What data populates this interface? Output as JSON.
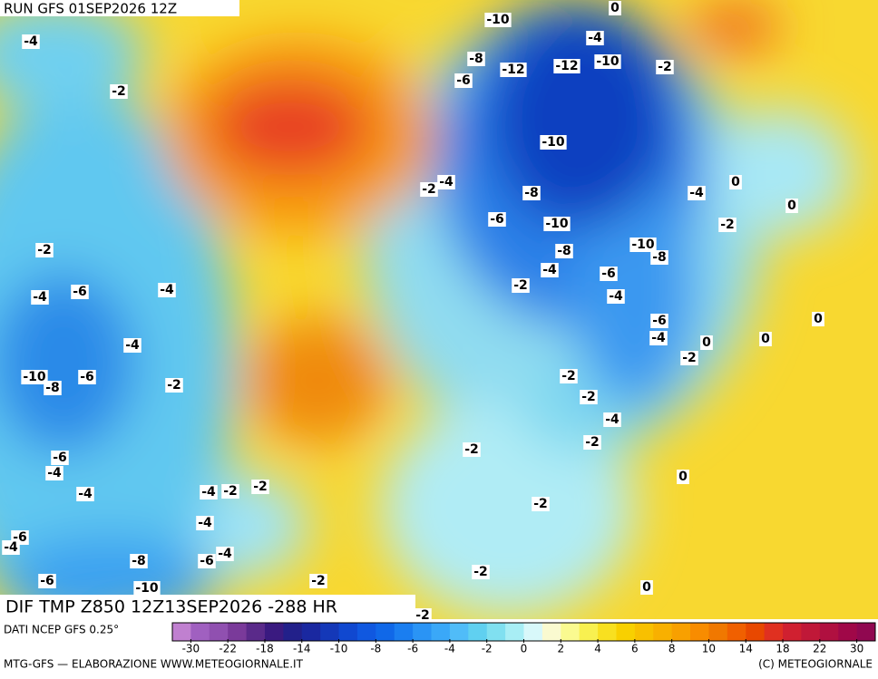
{
  "header": {
    "run": "RUN GFS 01SEP2026 12Z"
  },
  "map": {
    "title": "DIF TMP Z850 12Z13SEP2026 -288 HR",
    "contour_labels": [
      -10,
      0,
      -4,
      -4,
      -8,
      -12,
      -12,
      -10,
      -2,
      -6,
      -2,
      -10,
      -2,
      -4,
      -8,
      -4,
      0,
      0,
      -6,
      -10,
      -2,
      -2,
      -8,
      -10,
      -8,
      -4,
      -6,
      -2,
      -4,
      -6,
      -4,
      -4,
      -6,
      0,
      -4,
      0,
      0,
      -4,
      -2,
      -10,
      -8,
      -6,
      -2,
      -2,
      -2,
      -4,
      -2,
      -2,
      -6,
      -4,
      0,
      -4,
      -4,
      -2,
      -2,
      -2,
      -4,
      -6,
      -4,
      -4,
      -8,
      -6,
      -2,
      -6,
      -10,
      -2,
      0,
      -2
    ]
  },
  "colorbar": {
    "source": "DATI NCEP GFS 0.25°",
    "colors": [
      "#c080d0",
      "#a060c0",
      "#9050b0",
      "#7a3a9a",
      "#5a2a8a",
      "#3a1a80",
      "#22208a",
      "#1a28a0",
      "#1438b8",
      "#1048d0",
      "#1058e0",
      "#1068e8",
      "#1a7ef0",
      "#2a94f5",
      "#3aa8f8",
      "#50bcf8",
      "#60d0f0",
      "#80e0f0",
      "#a8eef5",
      "#d8f8fa",
      "#fafad0",
      "#fafa90",
      "#f8f050",
      "#f8e020",
      "#f8d000",
      "#f8c000",
      "#f8b000",
      "#f8a000",
      "#f88c00",
      "#f07800",
      "#f06000",
      "#e84800",
      "#e03020",
      "#d02030",
      "#c01838",
      "#b01040",
      "#a00848",
      "#900850"
    ],
    "ticks": [
      -30,
      -22,
      -18,
      -14,
      -10,
      -8,
      -6,
      -4,
      -2,
      0,
      2,
      4,
      6,
      8,
      10,
      14,
      18,
      22,
      30
    ]
  },
  "footer": {
    "left": "MTG-GFS — ELABORAZIONE WWW.METEOGIORNALE.IT",
    "right": "(C) METEOGIORNALE"
  }
}
